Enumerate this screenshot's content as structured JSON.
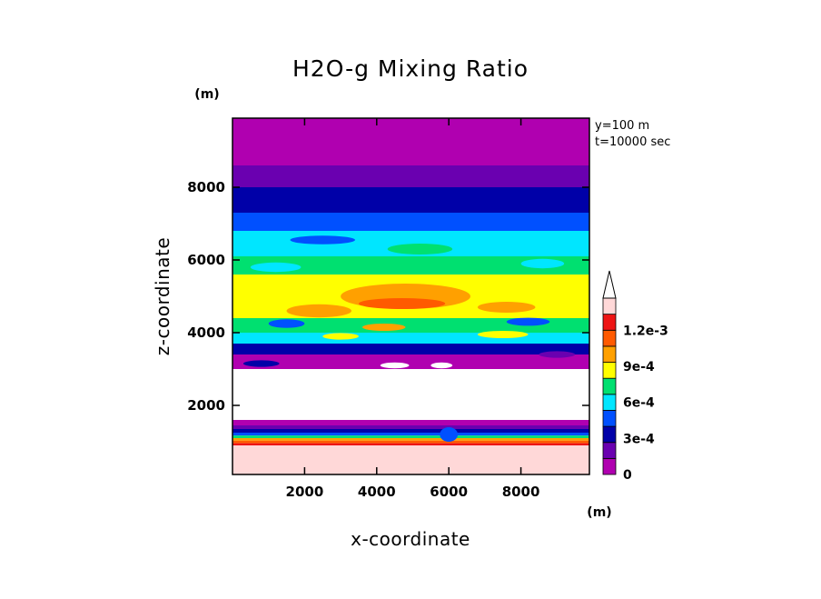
{
  "chart_data": {
    "type": "heatmap",
    "title": "H2O-g Mixing Ratio",
    "xlabel": "x-coordinate",
    "ylabel": "z-coordinate",
    "x_unit": "(m)",
    "y_unit": "(m)",
    "annotations": [
      "y=100  m",
      "t=10000 sec"
    ],
    "xlim": [
      0,
      9900
    ],
    "ylim": [
      100,
      9900
    ],
    "x_ticks": [
      2000,
      4000,
      6000,
      8000
    ],
    "y_ticks": [
      2000,
      4000,
      6000,
      8000
    ],
    "colorbar": {
      "levels": [
        0,
        0.00015,
        0.0003,
        0.00045,
        0.0006,
        0.00075,
        0.0009,
        0.00105,
        0.0012
      ],
      "labels": [
        {
          "value": 0,
          "text": "0"
        },
        {
          "value": 0.0003,
          "text": "3e-4"
        },
        {
          "value": 0.0006,
          "text": "6e-4"
        },
        {
          "value": 0.0009,
          "text": "9e-4"
        },
        {
          "value": 0.0012,
          "text": "1.2e-3"
        }
      ],
      "colors": [
        "#b000b0",
        "#6a00b0",
        "#0000a8",
        "#0050ff",
        "#00e6ff",
        "#00e070",
        "#ffff00",
        "#ffa000",
        "#ff5a00",
        "#ee1414",
        "#ffd8d8",
        "#ffffff"
      ],
      "extend": "max"
    },
    "horizontal_bands": [
      {
        "z_top": 9900,
        "z_bottom": 8600,
        "level": 0
      },
      {
        "z_top": 8600,
        "z_bottom": 8000,
        "level": 1
      },
      {
        "z_top": 8000,
        "z_bottom": 7300,
        "level": 2
      },
      {
        "z_top": 7300,
        "z_bottom": 6800,
        "level": 3
      },
      {
        "z_top": 6800,
        "z_bottom": 6100,
        "level": 4
      },
      {
        "z_top": 6100,
        "z_bottom": 5600,
        "level": 5
      },
      {
        "z_top": 5600,
        "z_bottom": 4400,
        "level": 6
      },
      {
        "z_top": 4400,
        "z_bottom": 4000,
        "level": 5
      },
      {
        "z_top": 4000,
        "z_bottom": 3700,
        "level": 4
      },
      {
        "z_top": 3700,
        "z_bottom": 3400,
        "level": 2
      },
      {
        "z_top": 3400,
        "z_bottom": 3000,
        "level": 0
      },
      {
        "z_top": 3000,
        "z_bottom": 1600,
        "level": 11
      },
      {
        "z_top": 1600,
        "z_bottom": 1450,
        "level": 0
      },
      {
        "z_top": 1450,
        "z_bottom": 1350,
        "level": 1
      },
      {
        "z_top": 1350,
        "z_bottom": 1250,
        "level": 2
      },
      {
        "z_top": 1250,
        "z_bottom": 1170,
        "level": 3
      },
      {
        "z_top": 1170,
        "z_bottom": 1100,
        "level": 5
      },
      {
        "z_top": 1100,
        "z_bottom": 1030,
        "level": 7
      },
      {
        "z_top": 1030,
        "z_bottom": 960,
        "level": 8
      },
      {
        "z_top": 960,
        "z_bottom": 900,
        "level": 9
      },
      {
        "z_top": 900,
        "z_bottom": 100,
        "level": 10
      }
    ],
    "blobs": [
      {
        "x": 4800,
        "z": 5000,
        "rx": 1800,
        "rz": 350,
        "level": 7
      },
      {
        "x": 4700,
        "z": 4800,
        "rx": 1200,
        "rz": 150,
        "level": 8
      },
      {
        "x": 2400,
        "z": 4600,
        "rx": 900,
        "rz": 180,
        "level": 7
      },
      {
        "x": 7600,
        "z": 4700,
        "rx": 800,
        "rz": 150,
        "level": 7
      },
      {
        "x": 3000,
        "z": 5350,
        "rx": 700,
        "rz": 120,
        "level": 6
      },
      {
        "x": 6800,
        "z": 5300,
        "rx": 600,
        "rz": 120,
        "level": 6
      },
      {
        "x": 1500,
        "z": 4250,
        "rx": 500,
        "rz": 120,
        "level": 3
      },
      {
        "x": 8200,
        "z": 4300,
        "rx": 600,
        "rz": 110,
        "level": 3
      },
      {
        "x": 4200,
        "z": 4150,
        "rx": 600,
        "rz": 100,
        "level": 7
      },
      {
        "x": 7500,
        "z": 3950,
        "rx": 700,
        "rz": 100,
        "level": 6
      },
      {
        "x": 3000,
        "z": 3900,
        "rx": 500,
        "rz": 90,
        "level": 6
      },
      {
        "x": 1200,
        "z": 5800,
        "rx": 700,
        "rz": 130,
        "level": 4
      },
      {
        "x": 8600,
        "z": 5900,
        "rx": 600,
        "rz": 130,
        "level": 4
      },
      {
        "x": 5200,
        "z": 6300,
        "rx": 900,
        "rz": 150,
        "level": 5
      },
      {
        "x": 2500,
        "z": 6550,
        "rx": 900,
        "rz": 120,
        "level": 3
      },
      {
        "x": 9000,
        "z": 3400,
        "rx": 500,
        "rz": 90,
        "level": 1
      },
      {
        "x": 800,
        "z": 3150,
        "rx": 500,
        "rz": 90,
        "level": 2
      },
      {
        "x": 4500,
        "z": 3100,
        "rx": 400,
        "rz": 80,
        "level": 11
      },
      {
        "x": 5800,
        "z": 3100,
        "rx": 300,
        "rz": 80,
        "level": 11
      },
      {
        "x": 6000,
        "z": 1200,
        "rx": 250,
        "rz": 200,
        "level": 3
      }
    ]
  }
}
